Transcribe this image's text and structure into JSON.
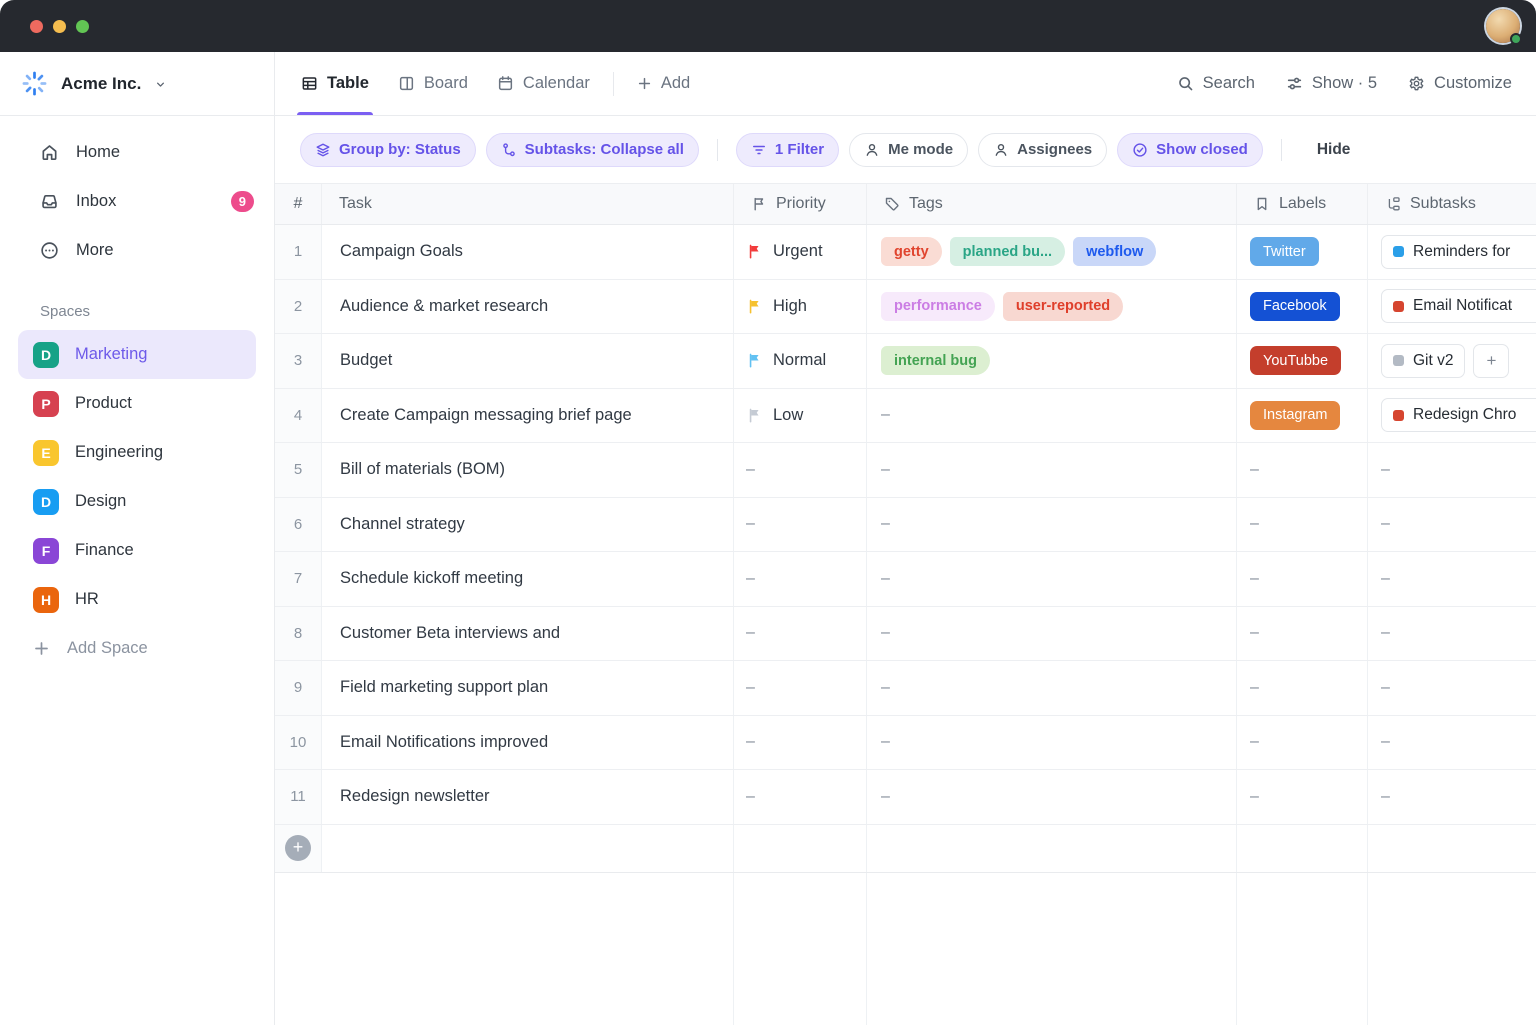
{
  "colors": {
    "accent_purple": "#7b5ff2",
    "titlebar": "#26292f",
    "inbox_badge": "#ed4c8c",
    "selected_space_bg": "#ebe8fc",
    "traffic_lights": [
      "#ee6a5f",
      "#f5bd4f",
      "#62c554"
    ]
  },
  "sidebar": {
    "workspace": {
      "name": "Acme Inc.",
      "logo_icon": "workspace-spinner-icon",
      "chevron_icon": "chevron-down-icon"
    },
    "nav": [
      {
        "id": "home",
        "icon": "home-icon",
        "label": "Home"
      },
      {
        "id": "inbox",
        "icon": "inbox-icon",
        "label": "Inbox",
        "badge": "9"
      },
      {
        "id": "more",
        "icon": "more-icon",
        "label": "More"
      }
    ],
    "spaces_title": "Spaces",
    "spaces": [
      {
        "id": "marketing",
        "initial": "D",
        "color": "#17a287",
        "label": "Marketing",
        "selected": true
      },
      {
        "id": "product",
        "initial": "P",
        "color": "#d64150",
        "label": "Product"
      },
      {
        "id": "engineering",
        "initial": "E",
        "color": "#f9c62e",
        "label": "Engineering"
      },
      {
        "id": "design",
        "initial": "D",
        "color": "#189df2",
        "label": "Design"
      },
      {
        "id": "finance",
        "initial": "F",
        "color": "#8a46d6",
        "label": "Finance"
      },
      {
        "id": "hr",
        "initial": "H",
        "color": "#ea650d",
        "label": "HR"
      }
    ],
    "add_space_label": "Add Space"
  },
  "header": {
    "tabs": [
      {
        "id": "table",
        "label": "Table",
        "icon": "table-icon",
        "active": true
      },
      {
        "id": "board",
        "label": "Board",
        "icon": "board-icon",
        "active": false
      },
      {
        "id": "calendar",
        "label": "Calendar",
        "icon": "calendar-icon",
        "active": false
      }
    ],
    "add_label": "Add",
    "actions": [
      {
        "id": "search",
        "label": "Search",
        "icon": "search-icon"
      },
      {
        "id": "show",
        "label": "Show · 5",
        "icon": "sliders-icon"
      },
      {
        "id": "customize",
        "label": "Customize",
        "icon": "gear-icon"
      }
    ]
  },
  "toolbar": {
    "groups": [
      {
        "type": "pill",
        "style": "purple",
        "icon": "layers-icon",
        "label": "Group by: Status"
      },
      {
        "type": "pill",
        "style": "purple",
        "icon": "subtask-icon",
        "label": "Subtasks: Collapse all"
      },
      {
        "type": "divider"
      },
      {
        "type": "pill",
        "style": "purple",
        "icon": "funnel-icon",
        "label": "1 Filter"
      },
      {
        "type": "pill",
        "style": "neutral",
        "icon": "person-icon",
        "label": "Me mode"
      },
      {
        "type": "pill",
        "style": "neutral",
        "icon": "person-icon",
        "label": "Assignees"
      },
      {
        "type": "pill",
        "style": "purple",
        "icon": "check-circle-icon",
        "label": "Show closed"
      },
      {
        "type": "divider"
      }
    ],
    "hide_label": "Hide"
  },
  "table": {
    "empty_cell": "–",
    "columns": [
      {
        "label": "#",
        "icon": null
      },
      {
        "label": "Task",
        "icon": null
      },
      {
        "label": "Priority",
        "icon": "flag-icon"
      },
      {
        "label": "Tags",
        "icon": "tag-icon"
      },
      {
        "label": "Labels",
        "icon": "bookmark-icon"
      },
      {
        "label": "Subtasks",
        "icon": "tree-icon"
      }
    ],
    "rows": [
      {
        "num": "1",
        "task": "Campaign Goals",
        "priority": {
          "label": "Urgent",
          "color": "#f23c3c"
        },
        "tags": [
          {
            "text": "getty",
            "fg": "#e0442e",
            "bg": "#fadcd4"
          },
          {
            "text": "planned bu...",
            "fg": "#2aa586",
            "bg": "#d6efe3"
          },
          {
            "text": "webflow",
            "fg": "#1d59ee",
            "bg": "#c9d7f8"
          }
        ],
        "label": {
          "text": "Twitter",
          "bg": "#61a9e9"
        },
        "subtasks": [
          {
            "text": "Reminders for",
            "swatch": "#2b9fe8",
            "clipped": true
          }
        ]
      },
      {
        "num": "2",
        "task": "Audience & market research",
        "priority": {
          "label": "High",
          "color": "#f6c12f"
        },
        "tags": [
          {
            "text": "performance",
            "fg": "#cb7de4",
            "bg": "#f7eafb"
          },
          {
            "text": "user-reported",
            "fg": "#df3f2b",
            "bg": "#f8d8d1"
          }
        ],
        "label": {
          "text": "Facebook",
          "bg": "#1451d4"
        },
        "subtasks": [
          {
            "text": "Email Notificat",
            "swatch": "#d6452f",
            "clipped": true
          }
        ]
      },
      {
        "num": "3",
        "task": "Budget",
        "priority": {
          "label": "Normal",
          "color": "#62c1f2"
        },
        "tags": [
          {
            "text": "internal bug",
            "fg": "#44a353",
            "bg": "#dcefd1"
          }
        ],
        "label": {
          "text": "YouTubbe",
          "bg": "#c43e2c"
        },
        "subtasks": [
          {
            "text": "Git v2",
            "swatch": "#b3bac4"
          },
          {
            "text": "+",
            "plus": true
          }
        ]
      },
      {
        "num": "4",
        "task": "Create Campaign messaging brief page",
        "priority": {
          "label": "Low",
          "color": "#c5cbd4"
        },
        "tags": null,
        "label": {
          "text": "Instagram",
          "bg": "#e5873f"
        },
        "subtasks": [
          {
            "text": "Redesign Chro",
            "swatch": "#d6452f",
            "clipped": true
          }
        ]
      },
      {
        "num": "5",
        "task": "Bill of materials (BOM)"
      },
      {
        "num": "6",
        "task": "Channel strategy"
      },
      {
        "num": "7",
        "task": "Schedule kickoff meeting"
      },
      {
        "num": "8",
        "task": "Customer Beta interviews and"
      },
      {
        "num": "9",
        "task": "Field marketing support plan"
      },
      {
        "num": "10",
        "task": "Email Notifications improved"
      },
      {
        "num": "11",
        "task": "Redesign newsletter"
      }
    ]
  }
}
